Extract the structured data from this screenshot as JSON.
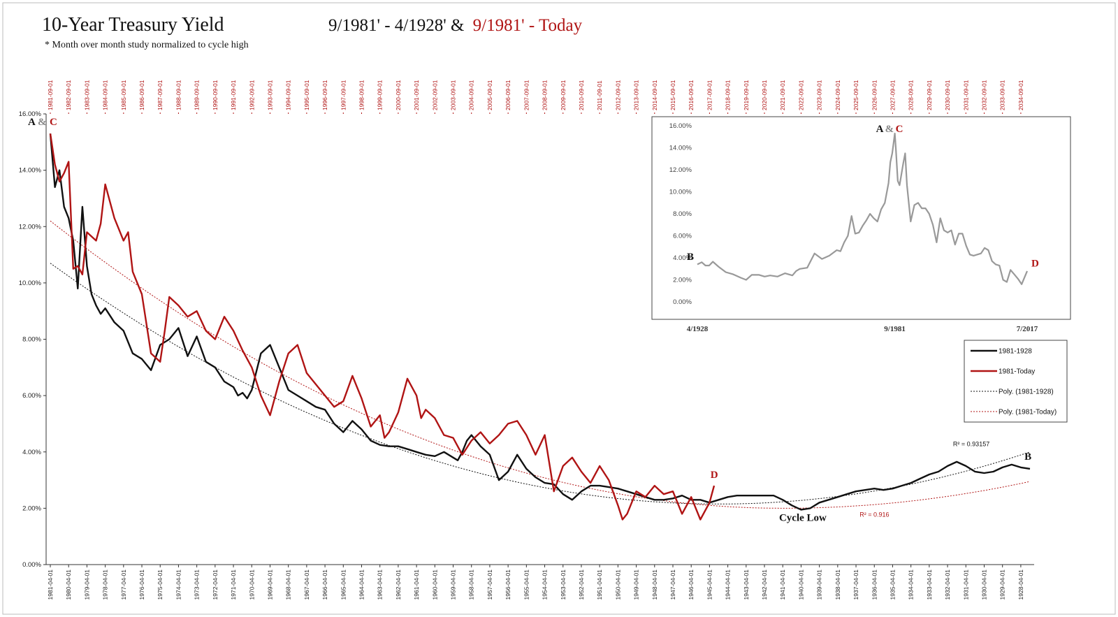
{
  "title": "10-Year Treasury Yield",
  "subtitle_black": "9/1981' - 4/1928' &",
  "subtitle_red": "9/1981' - Today",
  "note": "* Month over month study normalized to cycle high",
  "colors": {
    "black_series": "#111111",
    "red_series": "#b01414",
    "inset_series": "#999999",
    "frame": "#444444"
  },
  "chart_data": [
    {
      "type": "line",
      "ylim": [
        0,
        16
      ],
      "yticks": [
        "0.00%",
        "2.00%",
        "4.00%",
        "6.00%",
        "8.00%",
        "10.00%",
        "12.00%",
        "14.00%",
        "16.00%"
      ],
      "x_top_labels": [
        "1981-09-01",
        "1982-09-01",
        "1983-09-01",
        "1984-09-01",
        "1985-09-01",
        "1986-09-01",
        "1987-09-01",
        "1988-09-01",
        "1989-09-01",
        "1990-09-01",
        "1991-09-01",
        "1992-09-01",
        "1993-09-01",
        "1994-09-01",
        "1995-09-01",
        "1996-09-01",
        "1997-09-01",
        "1998-09-01",
        "1999-09-01",
        "2000-09-01",
        "2001-09-01",
        "2002-09-01",
        "2003-09-01",
        "2004-09-01",
        "2005-09-01",
        "2006-09-01",
        "2007-09-01",
        "2008-09-01",
        "2009-09-01",
        "2010-09-01",
        "2011-09-01",
        "2012-09-01",
        "2013-09-01",
        "2014-09-01",
        "2015-09-01",
        "2016-09-01",
        "2017-09-01",
        "2018-09-01",
        "2019-09-01",
        "2020-09-01",
        "2021-09-01",
        "2022-09-01",
        "2023-09-01",
        "2024-09-01",
        "2025-09-01",
        "2026-09-01",
        "2027-09-01",
        "2028-09-01",
        "2029-09-01",
        "2030-09-01",
        "2031-09-01",
        "2032-09-01",
        "2033-09-01",
        "2034-09-01"
      ],
      "x_bottom_labels": [
        "1981-04-01",
        "1980-04-01",
        "1979-04-01",
        "1978-04-01",
        "1977-04-01",
        "1976-04-01",
        "1975-04-01",
        "1974-04-01",
        "1973-04-01",
        "1972-04-01",
        "1971-04-01",
        "1970-04-01",
        "1969-04-01",
        "1968-04-01",
        "1967-04-01",
        "1966-04-01",
        "1965-04-01",
        "1964-04-01",
        "1963-04-01",
        "1962-04-01",
        "1961-04-01",
        "1960-04-01",
        "1959-04-01",
        "1958-04-01",
        "1957-04-01",
        "1956-04-01",
        "1955-04-01",
        "1954-04-01",
        "1953-04-01",
        "1952-04-01",
        "1951-04-01",
        "1950-04-01",
        "1949-04-01",
        "1948-04-01",
        "1947-04-01",
        "1946-04-01",
        "1945-04-01",
        "1944-04-01",
        "1943-04-01",
        "1942-04-01",
        "1941-04-01",
        "1940-04-01",
        "1939-04-01",
        "1938-04-01",
        "1937-04-01",
        "1936-04-01",
        "1935-04-01",
        "1934-04-01",
        "1933-04-01",
        "1932-04-01",
        "1931-04-01",
        "1930-04-01",
        "1929-04-01",
        "1928-04-01"
      ],
      "x_index_range": [
        0,
        53.5
      ],
      "series": [
        {
          "name": "1981-1928",
          "x": [
            0,
            0.25,
            0.5,
            0.75,
            1,
            1.25,
            1.5,
            1.75,
            2,
            2.25,
            2.5,
            2.75,
            3,
            3.5,
            4,
            4.5,
            5,
            5.5,
            6,
            6.5,
            7,
            7.5,
            8,
            8.5,
            9,
            9.5,
            10,
            10.25,
            10.5,
            10.75,
            11,
            11.5,
            12,
            12.5,
            13,
            13.5,
            14,
            14.5,
            15,
            15.5,
            16,
            16.5,
            17,
            17.5,
            18,
            18.5,
            19,
            19.5,
            20,
            20.5,
            21,
            21.5,
            22,
            22.25,
            22.5,
            22.75,
            23,
            23.5,
            24,
            24.5,
            25,
            25.5,
            26,
            26.5,
            27,
            27.5,
            28,
            28.5,
            29,
            29.5,
            30,
            30.5,
            31,
            31.5,
            32,
            32.5,
            33,
            33.5,
            34,
            34.5,
            35,
            35.5,
            36,
            36.5,
            37,
            37.5,
            38,
            38.5,
            39,
            39.5,
            40,
            40.5,
            41,
            41.5,
            42,
            42.5,
            43,
            43.5,
            44,
            44.5,
            45,
            45.5,
            46,
            46.5,
            47,
            47.5,
            48,
            48.5,
            49,
            49.5,
            50,
            50.5,
            51,
            51.5,
            52,
            52.5,
            53,
            53.5
          ],
          "y": [
            15.3,
            13.4,
            14.0,
            12.7,
            12.3,
            11.5,
            9.8,
            12.7,
            10.6,
            9.6,
            9.2,
            8.9,
            9.1,
            8.6,
            8.3,
            7.5,
            7.3,
            6.9,
            7.8,
            8.0,
            8.4,
            7.4,
            8.1,
            7.2,
            7.0,
            6.5,
            6.3,
            6.0,
            6.1,
            5.9,
            6.2,
            7.5,
            7.8,
            7.0,
            6.2,
            6.0,
            5.8,
            5.6,
            5.5,
            5.0,
            4.7,
            5.1,
            4.8,
            4.4,
            4.25,
            4.2,
            4.2,
            4.1,
            4.0,
            3.9,
            3.85,
            4.0,
            3.8,
            3.7,
            4.0,
            4.4,
            4.6,
            4.2,
            3.9,
            3.0,
            3.3,
            3.9,
            3.4,
            3.1,
            2.9,
            2.85,
            2.5,
            2.3,
            2.6,
            2.8,
            2.8,
            2.75,
            2.7,
            2.6,
            2.5,
            2.4,
            2.3,
            2.3,
            2.35,
            2.45,
            2.3,
            2.3,
            2.2,
            2.3,
            2.4,
            2.45,
            2.45,
            2.45,
            2.45,
            2.45,
            2.3,
            2.1,
            1.95,
            2.0,
            2.2,
            2.3,
            2.4,
            2.5,
            2.6,
            2.65,
            2.7,
            2.65,
            2.7,
            2.8,
            2.9,
            3.05,
            3.2,
            3.3,
            3.5,
            3.65,
            3.5,
            3.3,
            3.25,
            3.3,
            3.45,
            3.55,
            3.45,
            3.4
          ]
        },
        {
          "name": "1981-Today",
          "x": [
            0,
            0.25,
            0.5,
            0.75,
            1,
            1.25,
            1.5,
            1.75,
            2,
            2.5,
            2.75,
            3,
            3.5,
            4,
            4.25,
            4.5,
            5,
            5.5,
            6,
            6.25,
            6.5,
            7,
            7.5,
            8,
            8.5,
            9,
            9.5,
            10,
            10.5,
            11,
            11.5,
            12,
            12.5,
            13,
            13.5,
            14,
            14.5,
            15,
            15.5,
            16,
            16.5,
            17,
            17.5,
            18,
            18.25,
            18.5,
            19,
            19.5,
            20,
            20.25,
            20.5,
            21,
            21.5,
            22,
            22.5,
            23,
            23.5,
            24,
            24.5,
            25,
            25.5,
            26,
            26.5,
            27,
            27.5,
            28,
            28.5,
            29,
            29.5,
            30,
            30.5,
            31,
            31.25,
            31.5,
            32,
            32.5,
            33,
            33.5,
            34,
            34.5,
            35,
            35.5,
            36,
            36.25
          ],
          "y": [
            15.3,
            14.2,
            13.6,
            13.9,
            14.3,
            10.5,
            10.6,
            10.3,
            11.8,
            11.5,
            12.1,
            13.5,
            12.3,
            11.5,
            11.8,
            10.4,
            9.6,
            7.5,
            7.2,
            8.3,
            9.5,
            9.2,
            8.8,
            9.0,
            8.3,
            8.0,
            8.8,
            8.3,
            7.6,
            7.0,
            6.0,
            5.3,
            6.5,
            7.5,
            7.8,
            6.8,
            6.4,
            6.0,
            5.6,
            5.8,
            6.7,
            5.9,
            4.9,
            5.3,
            4.5,
            4.7,
            5.4,
            6.6,
            6.0,
            5.2,
            5.5,
            5.2,
            4.6,
            4.5,
            3.9,
            4.4,
            4.7,
            4.3,
            4.6,
            5.0,
            5.1,
            4.6,
            3.9,
            4.6,
            2.6,
            3.5,
            3.8,
            3.3,
            2.9,
            3.5,
            3.0,
            2.1,
            1.6,
            1.8,
            2.6,
            2.4,
            2.8,
            2.5,
            2.6,
            1.8,
            2.4,
            1.6,
            2.2,
            2.8
          ]
        }
      ],
      "trendlines": [
        {
          "name": "Poly. (1981-1928)",
          "r2_label": "R² = 0.93157",
          "y_at_start": 10.7,
          "y_min": 2.15,
          "y_min_at": 36.5,
          "y_at_end": 4.0
        },
        {
          "name": "Poly. (1981-Today)",
          "r2_label": "R² = 0.916",
          "y_at_start": 12.2,
          "y_min": 2.0,
          "y_min_at": 40.0,
          "y_at_end": 2.95
        }
      ],
      "annotations": {
        "a": "A",
        "amp": "&",
        "c": "C",
        "b": "B",
        "d": "D",
        "cycle_low": "Cycle Low"
      }
    },
    {
      "type": "line",
      "ylim": [
        0,
        16
      ],
      "yticks": [
        "0.00%",
        "2.00%",
        "4.00%",
        "6.00%",
        "8.00%",
        "10.00%",
        "12.00%",
        "14.00%",
        "16.00%"
      ],
      "x_labels": [
        "4/1928",
        "9/1981",
        "7/2017"
      ],
      "x_years": [
        1928.3,
        1981.7,
        2017.5
      ],
      "series": [
        {
          "name": "10-Year Treasury Yield 1928-2017",
          "x": [
            1928.3,
            1929.5,
            1930.5,
            1931.5,
            1932.5,
            1934,
            1936,
            1938,
            1940,
            1941.5,
            1943,
            1945,
            1946.5,
            1948,
            1950,
            1952,
            1954,
            1955,
            1956,
            1958,
            1960,
            1962,
            1964,
            1966,
            1967,
            1968,
            1969,
            1970,
            1971,
            1972,
            1973,
            1974,
            1975,
            1976,
            1977,
            1978,
            1979,
            1980,
            1980.5,
            1981,
            1981.7,
            1982,
            1982.5,
            1983,
            1984,
            1984.5,
            1985,
            1986,
            1987,
            1988,
            1989,
            1990,
            1991,
            1992,
            1993,
            1994,
            1995,
            1996,
            1997,
            1998,
            1999,
            2000,
            2001,
            2002,
            2003,
            2004,
            2005,
            2006,
            2007,
            2008,
            2009,
            2010,
            2011,
            2012,
            2013,
            2014,
            2015,
            2016,
            2017.5
          ],
          "y": [
            3.4,
            3.6,
            3.3,
            3.3,
            3.65,
            3.2,
            2.7,
            2.5,
            2.2,
            2.0,
            2.45,
            2.45,
            2.3,
            2.4,
            2.3,
            2.6,
            2.4,
            2.8,
            3.0,
            3.1,
            4.4,
            3.9,
            4.2,
            4.7,
            4.6,
            5.4,
            6.0,
            7.8,
            6.2,
            6.3,
            6.9,
            7.4,
            8.0,
            7.6,
            7.3,
            8.4,
            9.0,
            10.8,
            12.7,
            13.5,
            15.3,
            13.8,
            11.0,
            10.6,
            12.6,
            13.5,
            10.6,
            7.3,
            8.8,
            9.0,
            8.5,
            8.5,
            8.0,
            7.0,
            5.4,
            7.6,
            6.5,
            6.3,
            6.5,
            5.2,
            6.2,
            6.2,
            5.1,
            4.3,
            4.2,
            4.3,
            4.4,
            4.9,
            4.7,
            3.7,
            3.4,
            3.3,
            2.0,
            1.8,
            2.9,
            2.5,
            2.1,
            1.6,
            2.8
          ]
        }
      ],
      "annotations": {
        "a": "A",
        "amp": "&",
        "c": "C",
        "b": "B",
        "d": "D"
      }
    }
  ],
  "legend": [
    {
      "label": "1981-1928",
      "style": "solid-black"
    },
    {
      "label": "1981-Today",
      "style": "solid-red"
    },
    {
      "label": "Poly. (1981-1928)",
      "style": "dotted-black"
    },
    {
      "label": "Poly. (1981-Today)",
      "style": "dotted-red"
    }
  ]
}
